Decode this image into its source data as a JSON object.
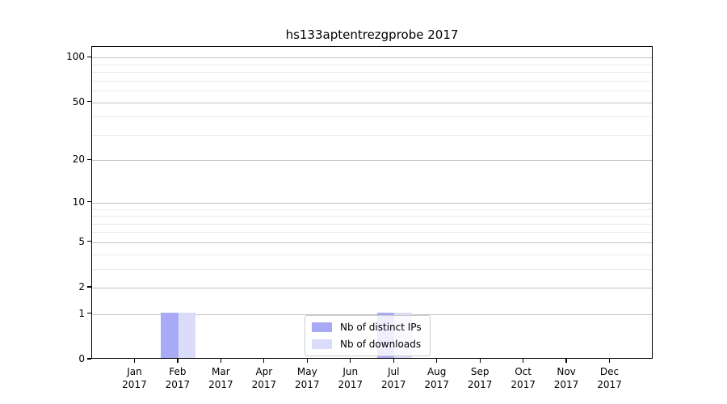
{
  "chart_data": {
    "type": "bar",
    "title": "hs133aptentrezgprobe 2017",
    "categories": [
      "Jan",
      "Feb",
      "Mar",
      "Apr",
      "May",
      "Jun",
      "Jul",
      "Aug",
      "Sep",
      "Oct",
      "Nov",
      "Dec"
    ],
    "x_tick_year": "2017",
    "series": [
      {
        "name": "Nb of distinct IPs",
        "color": "#a9aaf5",
        "values": [
          0,
          1,
          0,
          0,
          0,
          0,
          1,
          0,
          0,
          0,
          0,
          0
        ]
      },
      {
        "name": "Nb of downloads",
        "color": "#dbdcfa",
        "values": [
          0,
          1,
          0,
          0,
          0,
          0,
          1,
          0,
          0,
          0,
          0,
          0
        ]
      }
    ],
    "y_scale": "log1p",
    "y_ticks": [
      0,
      1,
      2,
      5,
      10,
      20,
      50,
      100
    ],
    "y_minor_ticks": [
      3,
      4,
      6,
      7,
      8,
      9,
      30,
      40,
      60,
      70,
      80,
      90
    ],
    "ylim": [
      0,
      118
    ],
    "grid": true,
    "legend_position": "lower center"
  },
  "colors": {
    "grid_major": "#c2c2c2",
    "grid_minor": "#eaeaea",
    "axis": "#000000",
    "legend_border": "#cccccc"
  }
}
